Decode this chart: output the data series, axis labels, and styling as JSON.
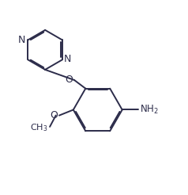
{
  "background_color": "#ffffff",
  "line_color": "#2c2c4a",
  "line_width": 1.4,
  "font_size": 8.5,
  "figsize": [
    2.38,
    2.46
  ],
  "dpi": 100,
  "xlim": [
    0,
    10
  ],
  "ylim": [
    0,
    10.3
  ]
}
